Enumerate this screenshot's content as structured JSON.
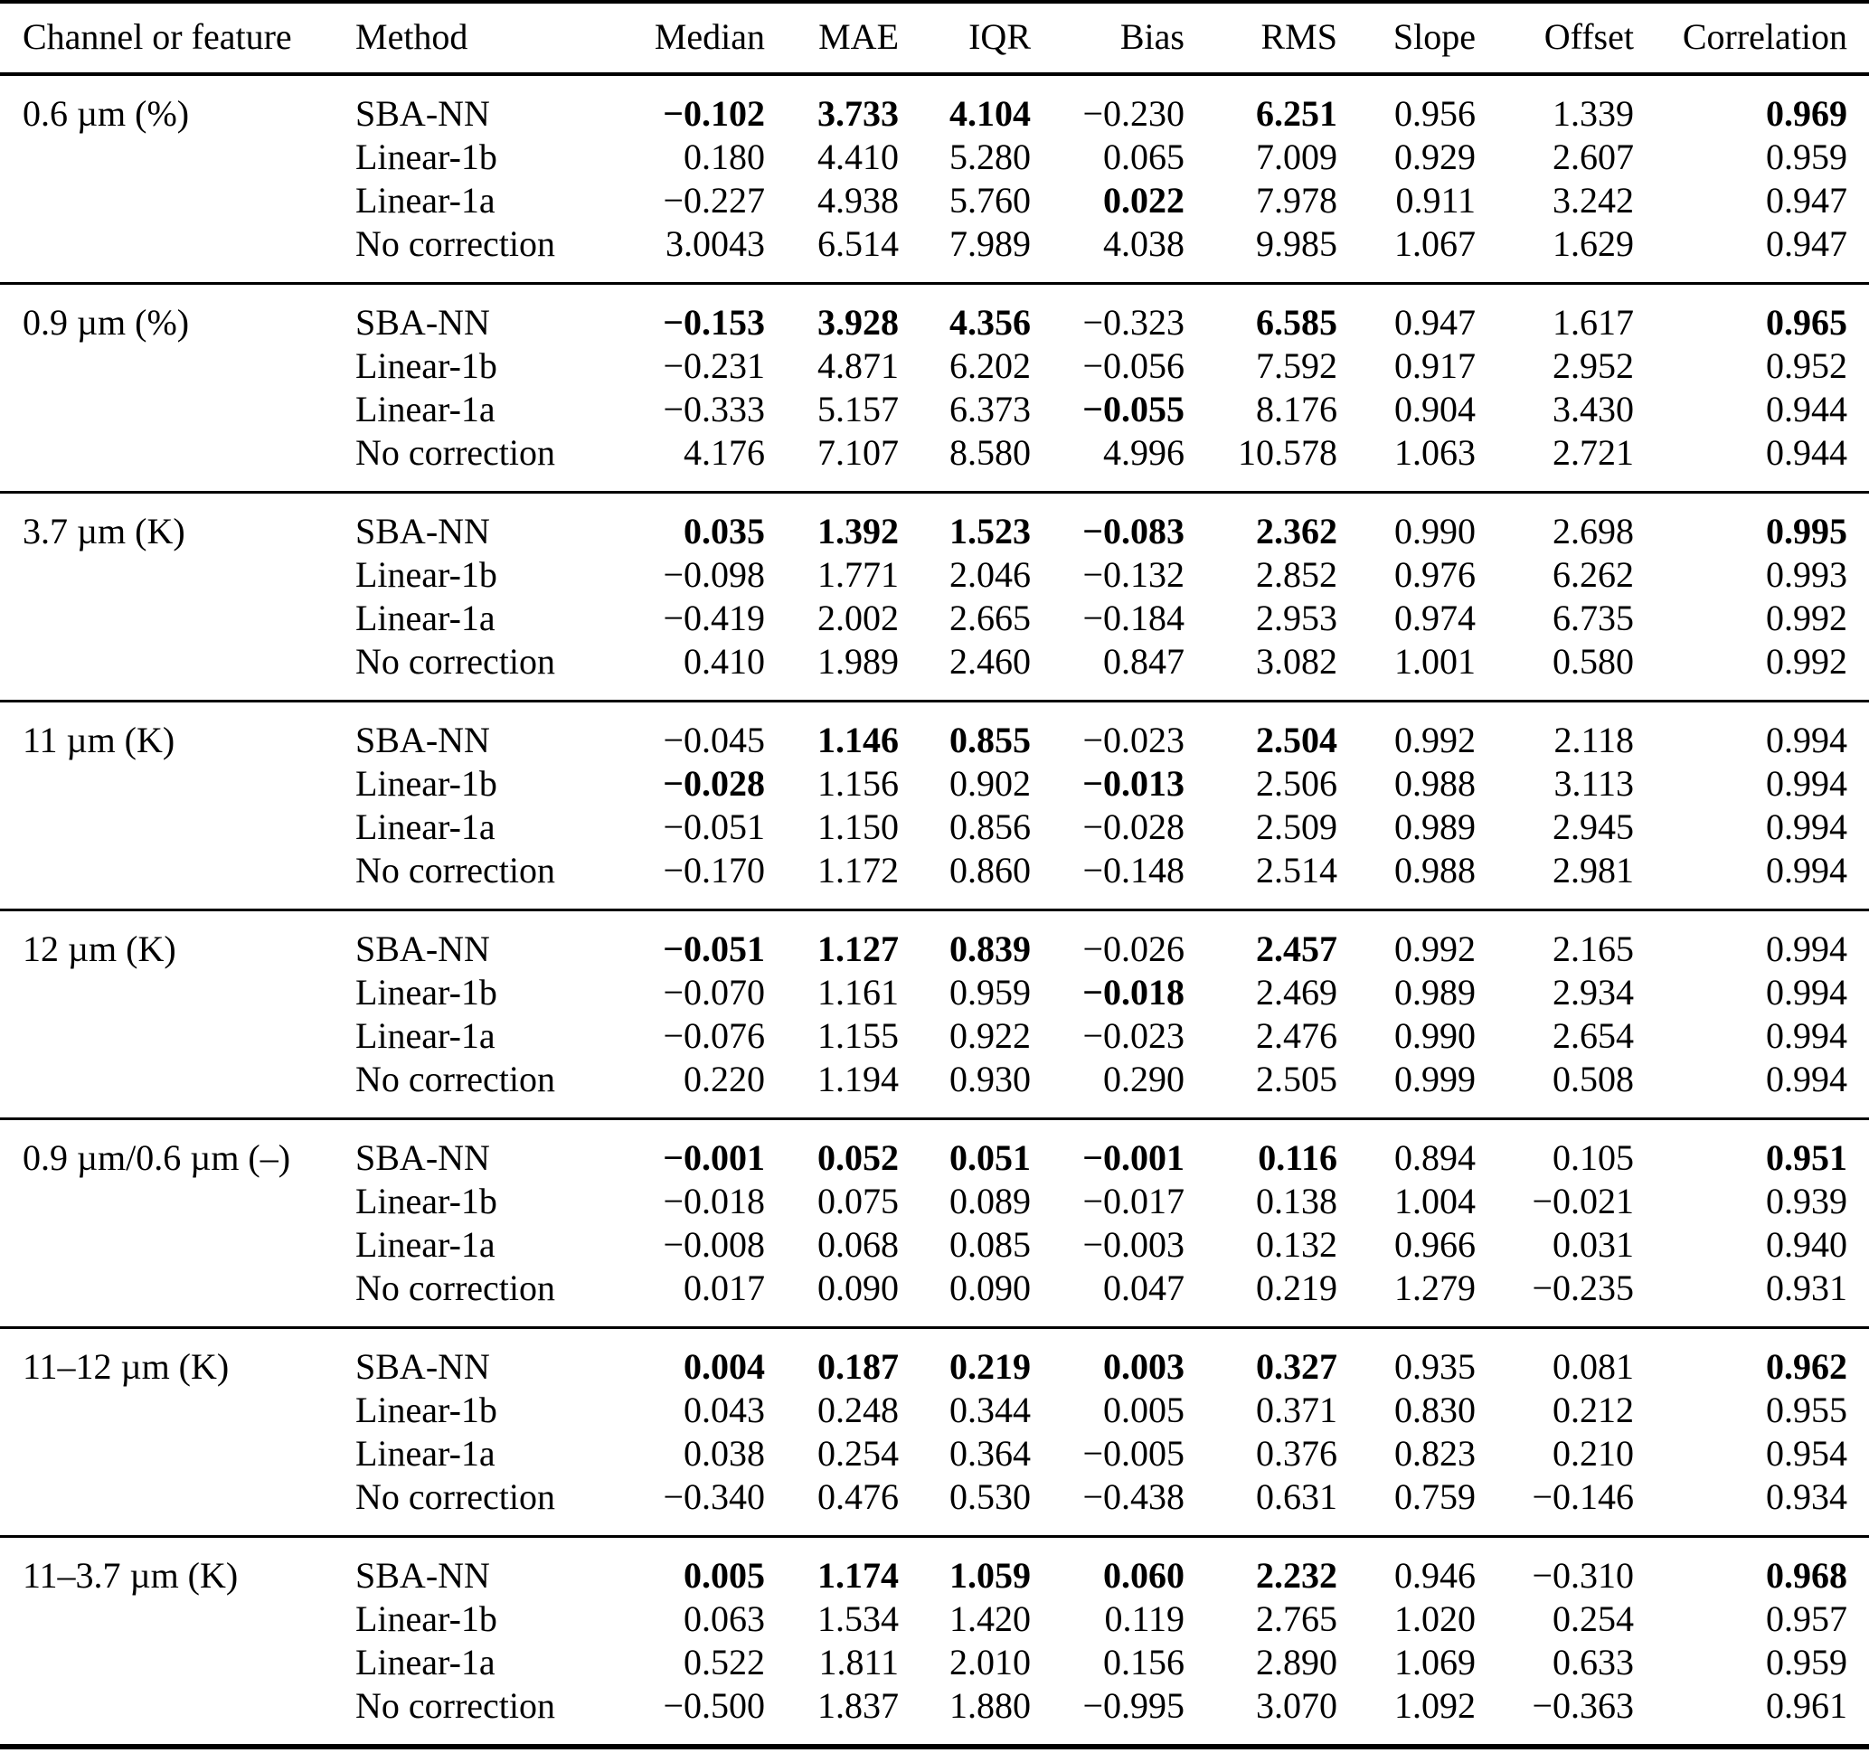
{
  "style": {
    "background_color": "#ffffff",
    "text_color": "#000000",
    "rule_color": "#000000"
  },
  "table": {
    "columns": [
      "Channel or feature",
      "Method",
      "Median",
      "MAE",
      "IQR",
      "Bias",
      "RMS",
      "Slope",
      "Offset",
      "Correlation"
    ],
    "groups": [
      {
        "feature": "0.6 µm (%)",
        "rows": [
          {
            "method": "SBA-NN",
            "values": [
              "−0.102",
              "3.733",
              "4.104",
              "−0.230",
              "6.251",
              "0.956",
              "1.339",
              "0.969"
            ],
            "bold": [
              0,
              1,
              2,
              4,
              7
            ]
          },
          {
            "method": "Linear-1b",
            "values": [
              "0.180",
              "4.410",
              "5.280",
              "0.065",
              "7.009",
              "0.929",
              "2.607",
              "0.959"
            ],
            "bold": []
          },
          {
            "method": "Linear-1a",
            "values": [
              "−0.227",
              "4.938",
              "5.760",
              "0.022",
              "7.978",
              "0.911",
              "3.242",
              "0.947"
            ],
            "bold": [
              3
            ]
          },
          {
            "method": "No correction",
            "values": [
              "3.0043",
              "6.514",
              "7.989",
              "4.038",
              "9.985",
              "1.067",
              "1.629",
              "0.947"
            ],
            "bold": []
          }
        ]
      },
      {
        "feature": "0.9 µm (%)",
        "rows": [
          {
            "method": "SBA-NN",
            "values": [
              "−0.153",
              "3.928",
              "4.356",
              "−0.323",
              "6.585",
              "0.947",
              "1.617",
              "0.965"
            ],
            "bold": [
              0,
              1,
              2,
              4,
              7
            ]
          },
          {
            "method": "Linear-1b",
            "values": [
              "−0.231",
              "4.871",
              "6.202",
              "−0.056",
              "7.592",
              "0.917",
              "2.952",
              "0.952"
            ],
            "bold": []
          },
          {
            "method": "Linear-1a",
            "values": [
              "−0.333",
              "5.157",
              "6.373",
              "−0.055",
              "8.176",
              "0.904",
              "3.430",
              "0.944"
            ],
            "bold": [
              3
            ]
          },
          {
            "method": "No correction",
            "values": [
              "4.176",
              "7.107",
              "8.580",
              "4.996",
              "10.578",
              "1.063",
              "2.721",
              "0.944"
            ],
            "bold": []
          }
        ]
      },
      {
        "feature": "3.7 µm (K)",
        "rows": [
          {
            "method": "SBA-NN",
            "values": [
              "0.035",
              "1.392",
              "1.523",
              "−0.083",
              "2.362",
              "0.990",
              "2.698",
              "0.995"
            ],
            "bold": [
              0,
              1,
              2,
              3,
              4,
              7
            ]
          },
          {
            "method": "Linear-1b",
            "values": [
              "−0.098",
              "1.771",
              "2.046",
              "−0.132",
              "2.852",
              "0.976",
              "6.262",
              "0.993"
            ],
            "bold": []
          },
          {
            "method": "Linear-1a",
            "values": [
              "−0.419",
              "2.002",
              "2.665",
              "−0.184",
              "2.953",
              "0.974",
              "6.735",
              "0.992"
            ],
            "bold": []
          },
          {
            "method": "No correction",
            "values": [
              "0.410",
              "1.989",
              "2.460",
              "0.847",
              "3.082",
              "1.001",
              "0.580",
              "0.992"
            ],
            "bold": []
          }
        ]
      },
      {
        "feature": "11 µm (K)",
        "rows": [
          {
            "method": "SBA-NN",
            "values": [
              "−0.045",
              "1.146",
              "0.855",
              "−0.023",
              "2.504",
              "0.992",
              "2.118",
              "0.994"
            ],
            "bold": [
              1,
              2,
              4
            ]
          },
          {
            "method": "Linear-1b",
            "values": [
              "−0.028",
              "1.156",
              "0.902",
              "−0.013",
              "2.506",
              "0.988",
              "3.113",
              "0.994"
            ],
            "bold": [
              0,
              3
            ]
          },
          {
            "method": "Linear-1a",
            "values": [
              "−0.051",
              "1.150",
              "0.856",
              "−0.028",
              "2.509",
              "0.989",
              "2.945",
              "0.994"
            ],
            "bold": []
          },
          {
            "method": "No correction",
            "values": [
              "−0.170",
              "1.172",
              "0.860",
              "−0.148",
              "2.514",
              "0.988",
              "2.981",
              "0.994"
            ],
            "bold": []
          }
        ]
      },
      {
        "feature": "12 µm (K)",
        "rows": [
          {
            "method": "SBA-NN",
            "values": [
              "−0.051",
              "1.127",
              "0.839",
              "−0.026",
              "2.457",
              "0.992",
              "2.165",
              "0.994"
            ],
            "bold": [
              0,
              1,
              2,
              4
            ]
          },
          {
            "method": "Linear-1b",
            "values": [
              "−0.070",
              "1.161",
              "0.959",
              "−0.018",
              "2.469",
              "0.989",
              "2.934",
              "0.994"
            ],
            "bold": [
              3
            ]
          },
          {
            "method": "Linear-1a",
            "values": [
              "−0.076",
              "1.155",
              "0.922",
              "−0.023",
              "2.476",
              "0.990",
              "2.654",
              "0.994"
            ],
            "bold": []
          },
          {
            "method": "No correction",
            "values": [
              "0.220",
              "1.194",
              "0.930",
              "0.290",
              "2.505",
              "0.999",
              "0.508",
              "0.994"
            ],
            "bold": []
          }
        ]
      },
      {
        "feature": "0.9 µm/0.6 µm (–)",
        "rows": [
          {
            "method": "SBA-NN",
            "values": [
              "−0.001",
              "0.052",
              "0.051",
              "−0.001",
              "0.116",
              "0.894",
              "0.105",
              "0.951"
            ],
            "bold": [
              0,
              1,
              2,
              3,
              4,
              7
            ]
          },
          {
            "method": "Linear-1b",
            "values": [
              "−0.018",
              "0.075",
              "0.089",
              "−0.017",
              "0.138",
              "1.004",
              "−0.021",
              "0.939"
            ],
            "bold": []
          },
          {
            "method": "Linear-1a",
            "values": [
              "−0.008",
              "0.068",
              "0.085",
              "−0.003",
              "0.132",
              "0.966",
              "0.031",
              "0.940"
            ],
            "bold": []
          },
          {
            "method": "No correction",
            "values": [
              "0.017",
              "0.090",
              "0.090",
              "0.047",
              "0.219",
              "1.279",
              "−0.235",
              "0.931"
            ],
            "bold": []
          }
        ]
      },
      {
        "feature": "11–12 µm (K)",
        "rows": [
          {
            "method": "SBA-NN",
            "values": [
              "0.004",
              "0.187",
              "0.219",
              "0.003",
              "0.327",
              "0.935",
              "0.081",
              "0.962"
            ],
            "bold": [
              0,
              1,
              2,
              3,
              4,
              7
            ]
          },
          {
            "method": "Linear-1b",
            "values": [
              "0.043",
              "0.248",
              "0.344",
              "0.005",
              "0.371",
              "0.830",
              "0.212",
              "0.955"
            ],
            "bold": []
          },
          {
            "method": "Linear-1a",
            "values": [
              "0.038",
              "0.254",
              "0.364",
              "−0.005",
              "0.376",
              "0.823",
              "0.210",
              "0.954"
            ],
            "bold": []
          },
          {
            "method": "No correction",
            "values": [
              "−0.340",
              "0.476",
              "0.530",
              "−0.438",
              "0.631",
              "0.759",
              "−0.146",
              "0.934"
            ],
            "bold": []
          }
        ]
      },
      {
        "feature": "11–3.7 µm (K)",
        "rows": [
          {
            "method": "SBA-NN",
            "values": [
              "0.005",
              "1.174",
              "1.059",
              "0.060",
              "2.232",
              "0.946",
              "−0.310",
              "0.968"
            ],
            "bold": [
              0,
              1,
              2,
              3,
              4,
              7
            ]
          },
          {
            "method": "Linear-1b",
            "values": [
              "0.063",
              "1.534",
              "1.420",
              "0.119",
              "2.765",
              "1.020",
              "0.254",
              "0.957"
            ],
            "bold": []
          },
          {
            "method": "Linear-1a",
            "values": [
              "0.522",
              "1.811",
              "2.010",
              "0.156",
              "2.890",
              "1.069",
              "0.633",
              "0.959"
            ],
            "bold": []
          },
          {
            "method": "No correction",
            "values": [
              "−0.500",
              "1.837",
              "1.880",
              "−0.995",
              "3.070",
              "1.092",
              "−0.363",
              "0.961"
            ],
            "bold": []
          }
        ]
      }
    ]
  }
}
